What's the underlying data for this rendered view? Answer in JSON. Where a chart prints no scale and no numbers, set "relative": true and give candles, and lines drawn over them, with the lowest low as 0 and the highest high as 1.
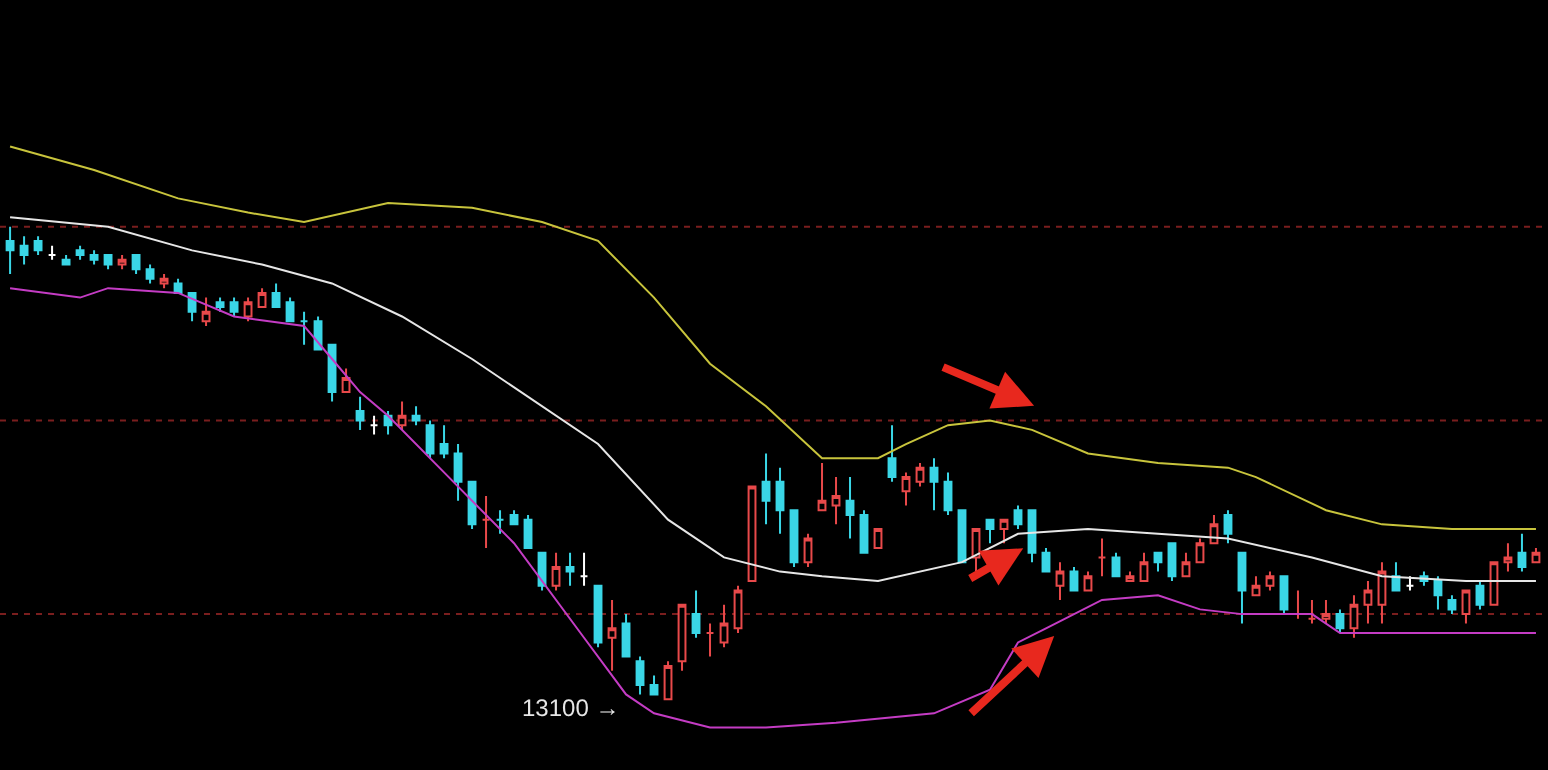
{
  "chart_data": {
    "type": "candlestick",
    "relative": true,
    "tick_labels": false,
    "grid": false,
    "categories": [
      null,
      null,
      null,
      null,
      null,
      null,
      null,
      null,
      null,
      null,
      null,
      null,
      null,
      null,
      null,
      null,
      null,
      null,
      null,
      null,
      null,
      null,
      null,
      null,
      null,
      null,
      null,
      null,
      null,
      null,
      null,
      null,
      null,
      null,
      null,
      null,
      null,
      null,
      null,
      null,
      null,
      null,
      null,
      null,
      null,
      null,
      null,
      null,
      null,
      null,
      null,
      null,
      null,
      null,
      null,
      null,
      null,
      null,
      null,
      null,
      null,
      null,
      null,
      null,
      null,
      null,
      null,
      null,
      null,
      null,
      null,
      null,
      null,
      null,
      null,
      null,
      null,
      null,
      null,
      null,
      null,
      null,
      null,
      null,
      null,
      null,
      null,
      null,
      null,
      null,
      null,
      null,
      null,
      null,
      null,
      null,
      null,
      null,
      null,
      null,
      null,
      null,
      null,
      null,
      null,
      null,
      null,
      null,
      null,
      null
    ],
    "ohlc": [
      [
        0.97,
        1.0,
        0.9,
        0.95
      ],
      [
        0.96,
        0.98,
        0.92,
        0.94
      ],
      [
        0.97,
        0.98,
        0.94,
        0.95
      ],
      [
        0.94,
        0.96,
        0.93,
        0.94
      ],
      [
        0.93,
        0.94,
        0.92,
        0.92
      ],
      [
        0.95,
        0.96,
        0.93,
        0.94
      ],
      [
        0.94,
        0.95,
        0.92,
        0.93
      ],
      [
        0.94,
        0.94,
        0.91,
        0.92
      ],
      [
        0.92,
        0.94,
        0.91,
        0.93
      ],
      [
        0.94,
        0.94,
        0.9,
        0.91
      ],
      [
        0.91,
        0.92,
        0.88,
        0.89
      ],
      [
        0.88,
        0.9,
        0.87,
        0.89
      ],
      [
        0.88,
        0.89,
        0.86,
        0.86
      ],
      [
        0.86,
        0.86,
        0.8,
        0.82
      ],
      [
        0.8,
        0.85,
        0.79,
        0.82
      ],
      [
        0.84,
        0.85,
        0.82,
        0.83
      ],
      [
        0.84,
        0.85,
        0.81,
        0.82
      ],
      [
        0.81,
        0.85,
        0.8,
        0.84
      ],
      [
        0.83,
        0.87,
        0.83,
        0.86
      ],
      [
        0.86,
        0.88,
        0.83,
        0.83
      ],
      [
        0.84,
        0.85,
        0.8,
        0.8
      ],
      [
        0.8,
        0.82,
        0.75,
        0.8
      ],
      [
        0.8,
        0.81,
        0.74,
        0.74
      ],
      [
        0.75,
        0.75,
        0.63,
        0.65
      ],
      [
        0.65,
        0.7,
        0.65,
        0.68
      ],
      [
        0.61,
        0.64,
        0.57,
        0.59
      ],
      [
        0.58,
        0.6,
        0.56,
        0.58
      ],
      [
        0.6,
        0.61,
        0.56,
        0.58
      ],
      [
        0.58,
        0.63,
        0.57,
        0.6
      ],
      [
        0.6,
        0.62,
        0.58,
        0.59
      ],
      [
        0.58,
        0.59,
        0.51,
        0.52
      ],
      [
        0.54,
        0.58,
        0.51,
        0.52
      ],
      [
        0.52,
        0.54,
        0.42,
        0.46
      ],
      [
        0.46,
        0.46,
        0.36,
        0.37
      ],
      [
        0.38,
        0.43,
        0.32,
        0.38
      ],
      [
        0.38,
        0.4,
        0.35,
        0.38
      ],
      [
        0.39,
        0.4,
        0.37,
        0.37
      ],
      [
        0.38,
        0.39,
        0.32,
        0.32
      ],
      [
        0.31,
        0.31,
        0.23,
        0.24
      ],
      [
        0.24,
        0.31,
        0.23,
        0.28
      ],
      [
        0.28,
        0.31,
        0.24,
        0.27
      ],
      [
        0.26,
        0.31,
        0.24,
        0.26
      ],
      [
        0.24,
        0.24,
        0.11,
        0.12
      ],
      [
        0.13,
        0.21,
        0.06,
        0.15
      ],
      [
        0.16,
        0.18,
        0.09,
        0.09
      ],
      [
        0.08,
        0.09,
        0.01,
        0.03
      ],
      [
        0.03,
        0.05,
        0.01,
        0.01
      ],
      [
        0.0,
        0.08,
        0.0,
        0.07
      ],
      [
        0.08,
        0.2,
        0.06,
        0.2
      ],
      [
        0.18,
        0.23,
        0.13,
        0.14
      ],
      [
        0.14,
        0.16,
        0.09,
        0.14
      ],
      [
        0.12,
        0.2,
        0.11,
        0.16
      ],
      [
        0.15,
        0.24,
        0.14,
        0.23
      ],
      [
        0.25,
        0.45,
        0.25,
        0.45
      ],
      [
        0.46,
        0.52,
        0.37,
        0.42
      ],
      [
        0.46,
        0.49,
        0.35,
        0.4
      ],
      [
        0.4,
        0.4,
        0.28,
        0.29
      ],
      [
        0.29,
        0.35,
        0.28,
        0.34
      ],
      [
        0.4,
        0.5,
        0.4,
        0.42
      ],
      [
        0.41,
        0.47,
        0.37,
        0.43
      ],
      [
        0.42,
        0.47,
        0.34,
        0.39
      ],
      [
        0.39,
        0.4,
        0.31,
        0.31
      ],
      [
        0.32,
        0.36,
        0.32,
        0.36
      ],
      [
        0.51,
        0.58,
        0.46,
        0.47
      ],
      [
        0.44,
        0.48,
        0.41,
        0.47
      ],
      [
        0.46,
        0.5,
        0.45,
        0.49
      ],
      [
        0.49,
        0.51,
        0.4,
        0.46
      ],
      [
        0.46,
        0.48,
        0.39,
        0.4
      ],
      [
        0.4,
        0.4,
        0.29,
        0.29
      ],
      [
        0.3,
        0.36,
        0.26,
        0.36
      ],
      [
        0.38,
        0.38,
        0.33,
        0.36
      ],
      [
        0.36,
        0.38,
        0.33,
        0.38
      ],
      [
        0.4,
        0.41,
        0.36,
        0.37
      ],
      [
        0.4,
        0.4,
        0.29,
        0.31
      ],
      [
        0.31,
        0.32,
        0.27,
        0.27
      ],
      [
        0.24,
        0.29,
        0.21,
        0.27
      ],
      [
        0.27,
        0.28,
        0.23,
        0.23
      ],
      [
        0.23,
        0.27,
        0.23,
        0.26
      ],
      [
        0.3,
        0.34,
        0.26,
        0.3
      ],
      [
        0.3,
        0.31,
        0.26,
        0.26
      ],
      [
        0.25,
        0.27,
        0.25,
        0.26
      ],
      [
        0.25,
        0.31,
        0.25,
        0.29
      ],
      [
        0.31,
        0.31,
        0.27,
        0.29
      ],
      [
        0.33,
        0.33,
        0.25,
        0.26
      ],
      [
        0.26,
        0.31,
        0.26,
        0.29
      ],
      [
        0.29,
        0.34,
        0.29,
        0.33
      ],
      [
        0.33,
        0.39,
        0.33,
        0.37
      ],
      [
        0.39,
        0.4,
        0.33,
        0.35
      ],
      [
        0.31,
        0.31,
        0.16,
        0.23
      ],
      [
        0.22,
        0.26,
        0.22,
        0.24
      ],
      [
        0.24,
        0.27,
        0.23,
        0.26
      ],
      [
        0.26,
        0.26,
        0.18,
        0.19
      ],
      [
        0.18,
        0.23,
        0.17,
        0.18
      ],
      [
        0.17,
        0.21,
        0.16,
        0.17
      ],
      [
        0.17,
        0.21,
        0.16,
        0.18
      ],
      [
        0.18,
        0.19,
        0.14,
        0.15
      ],
      [
        0.15,
        0.22,
        0.13,
        0.2
      ],
      [
        0.2,
        0.25,
        0.16,
        0.23
      ],
      [
        0.2,
        0.29,
        0.16,
        0.27
      ],
      [
        0.26,
        0.29,
        0.23,
        0.23
      ],
      [
        0.24,
        0.26,
        0.23,
        0.24
      ],
      [
        0.26,
        0.27,
        0.24,
        0.25
      ],
      [
        0.25,
        0.26,
        0.19,
        0.22
      ],
      [
        0.21,
        0.22,
        0.18,
        0.19
      ],
      [
        0.18,
        0.23,
        0.16,
        0.23
      ],
      [
        0.24,
        0.25,
        0.19,
        0.2
      ],
      [
        0.2,
        0.29,
        0.2,
        0.29
      ],
      [
        0.29,
        0.33,
        0.27,
        0.3
      ],
      [
        0.31,
        0.35,
        0.27,
        0.28
      ],
      [
        0.29,
        0.32,
        0.29,
        0.31
      ]
    ],
    "colors": [
      "#3ad6e6",
      "#3ad6e6",
      "#3ad6e6",
      "#ffffff",
      "#3ad6e6",
      "#3ad6e6",
      "#3ad6e6",
      "#3ad6e6",
      "#e8494a",
      "#3ad6e6",
      "#3ad6e6",
      "#e8494a",
      "#3ad6e6",
      "#3ad6e6",
      "#e8494a",
      "#3ad6e6",
      "#3ad6e6",
      "#e8494a",
      "#e8494a",
      "#3ad6e6",
      "#3ad6e6",
      "#3ad6e6",
      "#3ad6e6",
      "#3ad6e6",
      "#e8494a",
      "#3ad6e6",
      "#ffffff",
      "#3ad6e6",
      "#e8494a",
      "#3ad6e6",
      "#3ad6e6",
      "#3ad6e6",
      "#3ad6e6",
      "#3ad6e6",
      "#e8494a",
      "#3ad6e6",
      "#3ad6e6",
      "#3ad6e6",
      "#3ad6e6",
      "#e8494a",
      "#3ad6e6",
      "#ffffff",
      "#3ad6e6",
      "#e8494a",
      "#3ad6e6",
      "#3ad6e6",
      "#3ad6e6",
      "#e8494a",
      "#e8494a",
      "#3ad6e6",
      "#e8494a",
      "#e8494a",
      "#e8494a",
      "#e8494a",
      "#3ad6e6",
      "#3ad6e6",
      "#3ad6e6",
      "#e8494a",
      "#e8494a",
      "#e8494a",
      "#3ad6e6",
      "#3ad6e6",
      "#e8494a",
      "#3ad6e6",
      "#e8494a",
      "#e8494a",
      "#3ad6e6",
      "#3ad6e6",
      "#3ad6e6",
      "#e8494a",
      "#3ad6e6",
      "#e8494a",
      "#3ad6e6",
      "#3ad6e6",
      "#3ad6e6",
      "#e8494a",
      "#3ad6e6",
      "#e8494a",
      "#e8494a",
      "#3ad6e6",
      "#e8494a",
      "#e8494a",
      "#3ad6e6",
      "#3ad6e6",
      "#e8494a",
      "#e8494a",
      "#e8494a",
      "#3ad6e6",
      "#3ad6e6",
      "#e8494a",
      "#e8494a",
      "#3ad6e6",
      "#e8494a",
      "#e8494a",
      "#e8494a",
      "#3ad6e6",
      "#e8494a",
      "#e8494a",
      "#e8494a",
      "#3ad6e6",
      "#ffffff",
      "#3ad6e6",
      "#3ad6e6",
      "#3ad6e6",
      "#e8494a",
      "#3ad6e6",
      "#e8494a",
      "#e8494a",
      "#3ad6e6",
      "#e8494a"
    ],
    "series": [
      {
        "type": "line",
        "color": "#c8c43c",
        "values": [
          1.17,
          null,
          null,
          null,
          null,
          null,
          1.12,
          null,
          null,
          null,
          null,
          null,
          1.06,
          null,
          null,
          null,
          null,
          1.03,
          null,
          null,
          null,
          1.01,
          null,
          null,
          null,
          null,
          null,
          1.05,
          null,
          null,
          null,
          null,
          null,
          1.04,
          null,
          null,
          null,
          null,
          1.01,
          null,
          null,
          null,
          0.97,
          null,
          null,
          null,
          0.85,
          null,
          null,
          null,
          0.71,
          null,
          null,
          null,
          0.62,
          null,
          null,
          null,
          0.51,
          null,
          null,
          null,
          0.51,
          null,
          0.54,
          null,
          null,
          0.58,
          null,
          null,
          0.59,
          null,
          null,
          0.57,
          null,
          null,
          null,
          0.52,
          null,
          null,
          null,
          null,
          0.5,
          null,
          null,
          null,
          null,
          0.49,
          null,
          0.47,
          null,
          null,
          null,
          null,
          0.4,
          null,
          null,
          null,
          0.37,
          null,
          null,
          null,
          null,
          0.36,
          null,
          null,
          null,
          null,
          null,
          0.36
        ]
      },
      {
        "type": "line",
        "color": "#e6e6e6",
        "values": [
          1.02,
          null,
          null,
          null,
          null,
          null,
          null,
          1.0,
          null,
          null,
          null,
          null,
          null,
          0.95,
          null,
          null,
          null,
          null,
          0.92,
          null,
          null,
          null,
          null,
          0.88,
          null,
          null,
          null,
          null,
          0.81,
          null,
          null,
          null,
          null,
          0.72,
          null,
          null,
          null,
          null,
          null,
          null,
          null,
          null,
          0.54,
          null,
          null,
          null,
          null,
          0.38,
          null,
          null,
          null,
          0.3,
          null,
          null,
          null,
          0.27,
          null,
          null,
          0.26,
          null,
          null,
          null,
          0.25,
          null,
          null,
          null,
          null,
          null,
          0.29,
          null,
          null,
          null,
          0.35,
          null,
          null,
          null,
          null,
          0.36,
          null,
          null,
          null,
          null,
          0.35,
          null,
          null,
          null,
          null,
          0.34,
          null,
          null,
          null,
          null,
          null,
          0.3,
          null,
          null,
          null,
          null,
          0.26,
          null,
          null,
          null,
          null,
          null,
          0.25,
          null,
          null,
          null,
          null,
          0.25
        ]
      },
      {
        "type": "line",
        "color": "#c43cc4",
        "values": [
          0.87,
          null,
          null,
          null,
          null,
          0.85,
          null,
          0.87,
          null,
          null,
          null,
          null,
          0.86,
          null,
          null,
          null,
          0.81,
          null,
          null,
          null,
          null,
          0.79,
          null,
          0.72,
          null,
          0.65,
          null,
          0.6,
          null,
          null,
          null,
          0.48,
          null,
          null,
          null,
          null,
          0.33,
          null,
          null,
          null,
          null,
          0.13,
          null,
          null,
          0.01,
          null,
          -0.03,
          null,
          null,
          null,
          -0.06,
          null,
          null,
          null,
          -0.06,
          null,
          null,
          null,
          null,
          -0.05,
          null,
          null,
          null,
          null,
          null,
          null,
          -0.03,
          null,
          null,
          null,
          0.02,
          null,
          0.12,
          null,
          0.15,
          null,
          null,
          null,
          0.21,
          null,
          null,
          null,
          0.22,
          null,
          null,
          0.19,
          null,
          null,
          0.18,
          null,
          null,
          null,
          null,
          0.18,
          null,
          0.14,
          null,
          null,
          null,
          null,
          0.14,
          null,
          null,
          null,
          null,
          null,
          null,
          null,
          null,
          0.14
        ]
      }
    ],
    "ref_lines": [
      {
        "axis": "y",
        "value": 1.0,
        "color": "#7a1e1e",
        "line_style": "dotted"
      },
      {
        "axis": "y",
        "value": 0.59,
        "color": "#7a1e1e",
        "line_style": "dotted"
      },
      {
        "axis": "y",
        "value": 0.18,
        "color": "#7a1e1e",
        "line_style": "dotted"
      }
    ],
    "annotations": [
      "13100 →"
    ]
  }
}
